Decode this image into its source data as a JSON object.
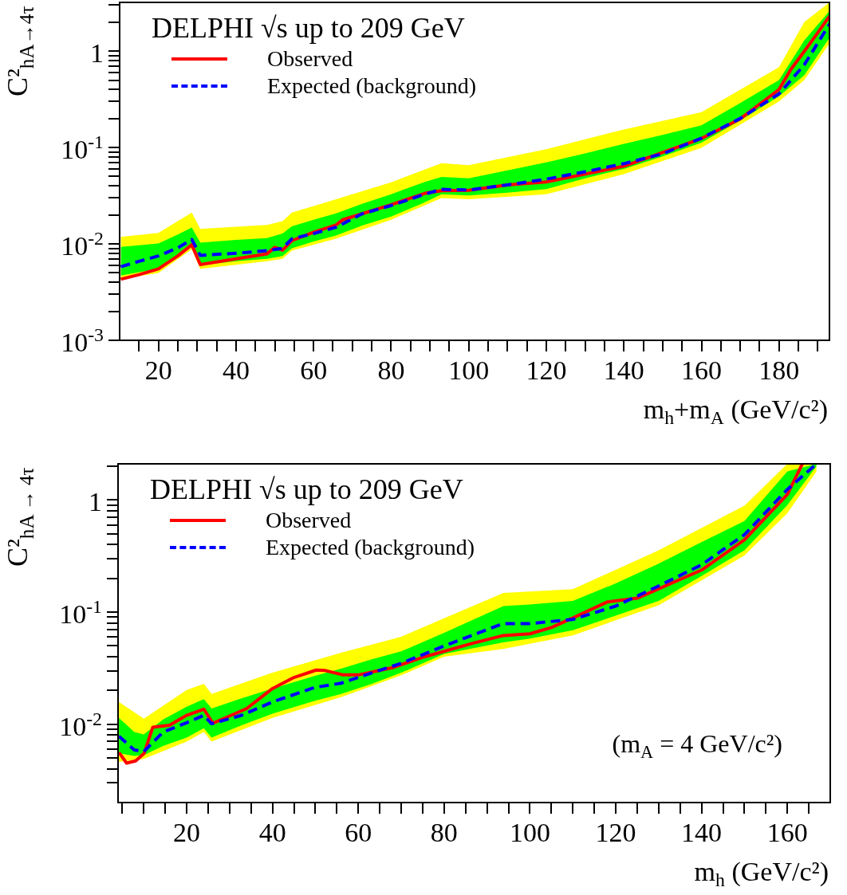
{
  "chart_data": [
    {
      "type": "line",
      "log": "y",
      "legend": "top left",
      "legend_title": "DELPHI √s up to 209 GeV",
      "ylabel": "C²$_{hA→4τ}$",
      "xlabel": "m$_{h}$+m$_{A}$ (GeV/c²)",
      "xlim": [
        10,
        193
      ],
      "ylim": [
        0.001,
        3.2
      ],
      "xticks": [
        {
          "value": 15,
          "label": null
        },
        20,
        {
          "value": 25,
          "label": null
        },
        {
          "value": 30,
          "label": null
        },
        {
          "value": 35,
          "label": null
        },
        40,
        {
          "value": 45,
          "label": null
        },
        {
          "value": 50,
          "label": null
        },
        {
          "value": 55,
          "label": null
        },
        60,
        {
          "value": 65,
          "label": null
        },
        {
          "value": 70,
          "label": null
        },
        {
          "value": 75,
          "label": null
        },
        80,
        {
          "value": 85,
          "label": null
        },
        {
          "value": 90,
          "label": null
        },
        {
          "value": 95,
          "label": null
        },
        100,
        {
          "value": 105,
          "label": null
        },
        {
          "value": 110,
          "label": null
        },
        {
          "value": 115,
          "label": null
        },
        120,
        {
          "value": 125,
          "label": null
        },
        {
          "value": 130,
          "label": null
        },
        {
          "value": 135,
          "label": null
        },
        140,
        {
          "value": 145,
          "label": null
        },
        {
          "value": 150,
          "label": null
        },
        {
          "value": 155,
          "label": null
        },
        160,
        {
          "value": 165,
          "label": null
        },
        {
          "value": 170,
          "label": null
        },
        {
          "value": 175,
          "label": null
        },
        180,
        {
          "value": 185,
          "label": null
        },
        {
          "value": 190,
          "label": null
        }
      ],
      "yticks": [
        {
          "value": 0.001,
          "label": "10$^{-3}$"
        },
        {
          "value": 0.002,
          "label": null
        },
        {
          "value": 0.003,
          "label": null
        },
        {
          "value": 0.004,
          "label": null
        },
        {
          "value": 0.005,
          "label": null
        },
        {
          "value": 0.006,
          "label": null
        },
        {
          "value": 0.007,
          "label": null
        },
        {
          "value": 0.008,
          "label": null
        },
        {
          "value": 0.009,
          "label": null
        },
        {
          "value": 0.01,
          "label": "10$^{-2}$"
        },
        {
          "value": 0.02,
          "label": null
        },
        {
          "value": 0.03,
          "label": null
        },
        {
          "value": 0.04,
          "label": null
        },
        {
          "value": 0.05,
          "label": null
        },
        {
          "value": 0.06,
          "label": null
        },
        {
          "value": 0.07,
          "label": null
        },
        {
          "value": 0.08,
          "label": null
        },
        {
          "value": 0.09,
          "label": null
        },
        {
          "value": 0.1,
          "label": "10$^{-1}$"
        },
        {
          "value": 0.2,
          "label": null
        },
        {
          "value": 0.3,
          "label": null
        },
        {
          "value": 0.4,
          "label": null
        },
        {
          "value": 0.5,
          "label": null
        },
        {
          "value": 0.6,
          "label": null
        },
        {
          "value": 0.7,
          "label": null
        },
        {
          "value": 0.8,
          "label": null
        },
        {
          "value": 0.9,
          "label": null
        },
        1,
        {
          "value": 2,
          "label": null
        },
        {
          "value": 3,
          "label": null
        }
      ],
      "series": [
        {
          "type": "line",
          "color": "#ffff00",
          "x": [
            10.3,
            20,
            28.6,
            30.8,
            48,
            52,
            54.4,
            65.8,
            80,
            93,
            100,
            120,
            140,
            160,
            180,
            186.5,
            193
          ],
          "values": [
            null,
            null,
            null,
            null,
            null,
            null,
            null,
            null,
            null,
            null,
            null,
            null,
            null,
            null,
            null,
            null,
            null
          ],
          "lower": [
            0.0043,
            0.005,
            0.0088,
            0.0055,
            0.0066,
            0.007,
            0.0085,
            0.0113,
            0.0178,
            0.0299,
            0.029,
            0.0328,
            0.053,
            0.0994,
            0.3,
            0.5,
            1.2
          ],
          "upper": [
            0.0118,
            0.013,
            0.0211,
            0.0143,
            0.0157,
            0.0172,
            0.0211,
            0.029,
            0.0436,
            0.0686,
            0.0656,
            0.096,
            0.154,
            0.233,
            0.68,
            2.0,
            3.2
          ]
        },
        {
          "name": "Observed",
          "color": "#ff0000",
          "line_style": "solid",
          "x": [
            10.3,
            15,
            20,
            25,
            28.6,
            30.8,
            40,
            48,
            50,
            52,
            54.4,
            60,
            65.8,
            67.5,
            80,
            88.7,
            93,
            100,
            110,
            120,
            140,
            160,
            170,
            180,
            183,
            188,
            193
          ],
          "values": [
            0.0043,
            0.0048,
            0.0055,
            0.0075,
            0.0098,
            0.0061,
            0.007,
            0.0079,
            0.0092,
            0.0086,
            0.0108,
            0.0132,
            0.0157,
            0.0178,
            0.0255,
            0.0335,
            0.0357,
            0.036,
            0.041,
            0.044,
            0.064,
            0.124,
            0.198,
            0.4,
            0.64,
            1.2,
            2.3
          ]
        },
        {
          "name": "Expected (background)",
          "color": "#0000ff",
          "line_style": "dashed",
          "x": [
            10.3,
            15,
            20,
            25,
            28.6,
            30.8,
            40,
            48,
            52,
            54.4,
            60,
            65.8,
            72.5,
            80,
            88.7,
            93,
            100,
            110,
            120,
            130,
            140,
            150,
            160,
            170,
            180,
            186.5,
            193
          ],
          "values": [
            0.0058,
            0.0066,
            0.0075,
            0.0091,
            0.0111,
            0.0076,
            0.008,
            0.0085,
            0.009,
            0.0113,
            0.0128,
            0.0149,
            0.0205,
            0.025,
            0.0328,
            0.0368,
            0.0362,
            0.041,
            0.047,
            0.056,
            0.068,
            0.086,
            0.125,
            0.2,
            0.36,
            0.72,
            1.9
          ]
        },
        {
          "type": "line",
          "color": "#00ff00",
          "x": [
            10.3,
            15,
            20,
            25,
            28.6,
            30.8,
            40,
            48,
            52,
            54.4,
            60,
            65.8,
            72.5,
            80,
            88.7,
            93,
            100,
            110,
            120,
            130,
            140,
            150,
            160,
            170,
            180,
            186.5,
            193
          ],
          "values": [
            null,
            null,
            null,
            null,
            null,
            null,
            null,
            null,
            null,
            null,
            null,
            null,
            null,
            null,
            null,
            null,
            null,
            null,
            null,
            null,
            null,
            null,
            null,
            null,
            null,
            null,
            null
          ],
          "lower": [
            0.0047,
            0.0051,
            0.0055,
            0.0075,
            0.0093,
            0.006,
            0.0066,
            0.007,
            0.0075,
            0.009,
            0.0106,
            0.0122,
            0.0155,
            0.0192,
            0.027,
            0.0328,
            0.0318,
            0.034,
            0.037,
            0.048,
            0.06,
            0.081,
            0.112,
            0.19,
            0.34,
            0.56,
            1.37
          ],
          "upper": [
            0.0093,
            0.0097,
            0.0101,
            0.0125,
            0.0148,
            0.0103,
            0.011,
            0.0115,
            0.0128,
            0.0152,
            0.0178,
            0.0207,
            0.026,
            0.0328,
            0.044,
            0.0494,
            0.048,
            0.058,
            0.07,
            0.087,
            0.109,
            0.135,
            0.17,
            0.29,
            0.5,
            1.29,
            2.6
          ]
        }
      ]
    },
    {
      "type": "line",
      "log": "y",
      "legend": "top left",
      "legend_title": "DELPHI √s up to 209 GeV",
      "ylabel": "C²$_{hA → 4τ}$",
      "xlabel": "m$_{h}$ (GeV/c²)",
      "annotations": [
        "(m$_{A}$ = 4 GeV/c²)"
      ],
      "xlim": [
        4,
        170
      ],
      "ylim": [
        0.002,
        2.1
      ],
      "xticks": [
        {
          "value": 5,
          "label": null
        },
        {
          "value": 10,
          "label": null
        },
        {
          "value": 15,
          "label": null
        },
        20,
        {
          "value": 25,
          "label": null
        },
        {
          "value": 30,
          "label": null
        },
        {
          "value": 35,
          "label": null
        },
        40,
        {
          "value": 45,
          "label": null
        },
        {
          "value": 50,
          "label": null
        },
        {
          "value": 55,
          "label": null
        },
        60,
        {
          "value": 65,
          "label": null
        },
        {
          "value": 70,
          "label": null
        },
        {
          "value": 75,
          "label": null
        },
        80,
        {
          "value": 85,
          "label": null
        },
        {
          "value": 90,
          "label": null
        },
        {
          "value": 95,
          "label": null
        },
        100,
        {
          "value": 105,
          "label": null
        },
        {
          "value": 110,
          "label": null
        },
        {
          "value": 115,
          "label": null
        },
        120,
        {
          "value": 125,
          "label": null
        },
        {
          "value": 130,
          "label": null
        },
        {
          "value": 135,
          "label": null
        },
        140,
        {
          "value": 145,
          "label": null
        },
        {
          "value": 150,
          "label": null
        },
        {
          "value": 155,
          "label": null
        },
        160,
        {
          "value": 165,
          "label": null
        }
      ],
      "yticks": [
        {
          "value": 0.003,
          "label": null
        },
        {
          "value": 0.004,
          "label": null
        },
        {
          "value": 0.005,
          "label": null
        },
        {
          "value": 0.006,
          "label": null
        },
        {
          "value": 0.007,
          "label": null
        },
        {
          "value": 0.008,
          "label": null
        },
        {
          "value": 0.009,
          "label": null
        },
        {
          "value": 0.01,
          "label": "10$^{-2}$"
        },
        {
          "value": 0.02,
          "label": null
        },
        {
          "value": 0.03,
          "label": null
        },
        {
          "value": 0.04,
          "label": null
        },
        {
          "value": 0.05,
          "label": null
        },
        {
          "value": 0.06,
          "label": null
        },
        {
          "value": 0.07,
          "label": null
        },
        {
          "value": 0.08,
          "label": null
        },
        {
          "value": 0.09,
          "label": null
        },
        {
          "value": 0.1,
          "label": "10$^{-1}$"
        },
        {
          "value": 0.2,
          "label": null
        },
        {
          "value": 0.3,
          "label": null
        },
        {
          "value": 0.4,
          "label": null
        },
        {
          "value": 0.5,
          "label": null
        },
        {
          "value": 0.6,
          "label": null
        },
        {
          "value": 0.7,
          "label": null
        },
        {
          "value": 0.8,
          "label": null
        },
        {
          "value": 0.9,
          "label": null
        },
        1,
        {
          "value": 2,
          "label": null
        }
      ],
      "series": [
        {
          "type": "line",
          "color": "#ffff00",
          "x": [
            4.2,
            10,
            20,
            24,
            25.8,
            40,
            56,
            70,
            80,
            93.8,
            110,
            130,
            150,
            160,
            166.8
          ],
          "values": [
            null,
            null,
            null,
            null,
            null,
            null,
            null,
            null,
            null,
            null,
            null,
            null,
            null,
            null,
            null
          ],
          "lower": [
            0.0046,
            0.0049,
            0.007,
            0.0085,
            0.007,
            0.0114,
            0.0174,
            0.0273,
            0.04,
            0.047,
            0.062,
            0.115,
            0.32,
            0.76,
            1.8
          ],
          "upper": [
            0.0158,
            0.0112,
            0.0202,
            0.0229,
            0.0186,
            0.0288,
            0.0434,
            0.0602,
            0.088,
            0.148,
            0.16,
            0.355,
            0.89,
            2.1,
            2.1
          ]
        },
        {
          "name": "Observed",
          "color": "#ff0000",
          "line_style": "solid",
          "x": [
            4.2,
            6,
            8.1,
            10.1,
            12.1,
            16,
            20,
            24,
            26.1,
            34,
            40,
            45,
            50.2,
            52.3,
            56.3,
            60.2,
            68.2,
            75.5,
            86.5,
            93.8,
            100,
            105,
            110,
            118,
            125,
            140,
            150,
            160,
            163.5
          ],
          "values": [
            0.0056,
            0.0045,
            0.0047,
            0.0055,
            0.0094,
            0.0098,
            0.012,
            0.0136,
            0.0102,
            0.0138,
            0.0208,
            0.0261,
            0.0304,
            0.0301,
            0.0276,
            0.0276,
            0.0321,
            0.04,
            0.0525,
            0.0618,
            0.064,
            0.0729,
            0.0887,
            0.123,
            0.133,
            0.237,
            0.44,
            1.12,
            2.1
          ]
        },
        {
          "name": "Expected (background)",
          "color": "#0000ff",
          "line_style": "dashed",
          "x": [
            4.2,
            7.8,
            10,
            14.5,
            20,
            24,
            25.8,
            32.8,
            40,
            49.9,
            56,
            63.3,
            70,
            80,
            93.8,
            100,
            110,
            120,
            130,
            140,
            150,
            160,
            166.8
          ],
          "values": [
            0.0078,
            0.0059,
            0.0057,
            0.0085,
            0.0103,
            0.012,
            0.0101,
            0.012,
            0.0158,
            0.0213,
            0.0232,
            0.0288,
            0.0349,
            0.0498,
            0.079,
            0.079,
            0.086,
            0.113,
            0.171,
            0.264,
            0.49,
            1.24,
            2.1
          ]
        },
        {
          "type": "line",
          "color": "#00ff00",
          "x": [
            4.2,
            7.8,
            10,
            14.5,
            20,
            24,
            25.8,
            32.8,
            40,
            49.9,
            56,
            63.3,
            70,
            80,
            93.8,
            100,
            110,
            120,
            130,
            140,
            150,
            160,
            166.8
          ],
          "values": [
            null,
            null,
            null,
            null,
            null,
            null,
            null,
            null,
            null,
            null,
            null,
            null,
            null,
            null,
            null,
            null,
            null,
            null,
            null,
            null,
            null,
            null,
            null
          ],
          "lower": [
            0.0055,
            0.0052,
            0.0053,
            0.0064,
            0.0076,
            0.0092,
            0.0076,
            0.0098,
            0.0124,
            0.0162,
            0.0186,
            0.023,
            0.0288,
            0.0423,
            0.0537,
            0.058,
            0.069,
            0.093,
            0.126,
            0.21,
            0.355,
            0.9,
            2.0
          ],
          "upper": [
            0.0114,
            0.0085,
            0.0081,
            0.011,
            0.0143,
            0.0167,
            0.0138,
            0.017,
            0.0208,
            0.027,
            0.0313,
            0.038,
            0.0446,
            0.0653,
            0.113,
            0.117,
            0.126,
            0.18,
            0.27,
            0.42,
            0.65,
            1.8,
            2.1
          ]
        }
      ]
    }
  ]
}
